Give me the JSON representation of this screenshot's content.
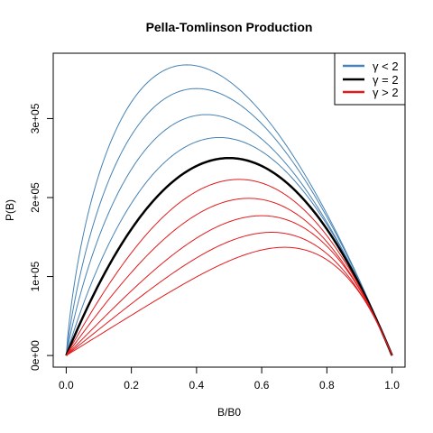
{
  "chart_data": {
    "type": "line",
    "title": "Pella-Tomlinson Production",
    "xlabel": "B/B0",
    "ylabel": "P(B)",
    "xlim": [
      0,
      1
    ],
    "ylim": [
      0,
      370000
    ],
    "x_ticks": [
      0.0,
      0.2,
      0.4,
      0.6,
      0.8,
      1.0
    ],
    "x_tick_labels": [
      "0.0",
      "0.2",
      "0.4",
      "0.6",
      "0.8",
      "1.0"
    ],
    "y_ticks": [
      0,
      100000,
      200000,
      300000
    ],
    "y_tick_labels": [
      "0e+00",
      "1e+05",
      "2e+05",
      "3e+05"
    ],
    "grid": false,
    "legend": {
      "position": "top-right",
      "entries": [
        {
          "label": "γ < 2",
          "color": "#4682B4"
        },
        {
          "label": "γ = 2",
          "color": "#000000"
        },
        {
          "label": "γ > 2",
          "color": "#E31A1C"
        }
      ]
    },
    "colors": {
      "low": "#4682B4",
      "mid": "#000000",
      "high": "#E31A1C"
    },
    "series": [
      {
        "group": "low",
        "peak_x": 0.37,
        "peak_y": 368000
      },
      {
        "group": "low",
        "peak_x": 0.4,
        "peak_y": 338000
      },
      {
        "group": "low",
        "peak_x": 0.43,
        "peak_y": 305000
      },
      {
        "group": "low",
        "peak_x": 0.47,
        "peak_y": 276000
      },
      {
        "group": "mid",
        "peak_x": 0.5,
        "peak_y": 250000
      },
      {
        "group": "high",
        "peak_x": 0.53,
        "peak_y": 223000
      },
      {
        "group": "high",
        "peak_x": 0.56,
        "peak_y": 199000
      },
      {
        "group": "high",
        "peak_x": 0.6,
        "peak_y": 177000
      },
      {
        "group": "high",
        "peak_x": 0.63,
        "peak_y": 156000
      },
      {
        "group": "high",
        "peak_x": 0.67,
        "peak_y": 137000
      }
    ]
  }
}
